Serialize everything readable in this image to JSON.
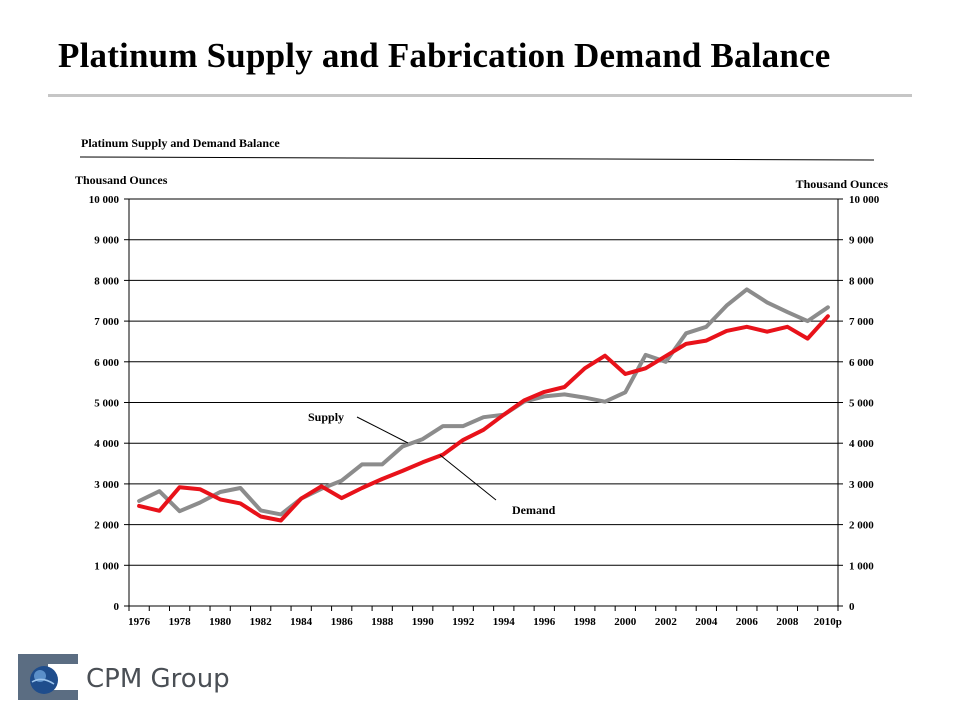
{
  "page": {
    "title": "Platinum Supply and Fabrication Demand Balance",
    "logo_text": "CPM Group"
  },
  "chart_data": {
    "type": "line",
    "title": "Platinum Supply and Demand Balance",
    "ylabel_left": "Thousand Ounces",
    "ylabel_right": "Thousand Ounces",
    "ylim": [
      0,
      10000
    ],
    "yticks": [
      0,
      1000,
      2000,
      3000,
      4000,
      5000,
      6000,
      7000,
      8000,
      9000,
      10000
    ],
    "ytick_labels": [
      "0",
      "1 000",
      "2 000",
      "3 000",
      "4 000",
      "5 000",
      "6 000",
      "7 000",
      "8 000",
      "9 000",
      "10 000"
    ],
    "grid": "horizontal",
    "x": [
      "1976",
      "1977",
      "1978",
      "1979",
      "1980",
      "1981",
      "1982",
      "1983",
      "1984",
      "1985",
      "1986",
      "1987",
      "1988",
      "1989",
      "1990",
      "1991",
      "1992",
      "1993",
      "1994",
      "1995",
      "1996",
      "1997",
      "1998",
      "1999",
      "2000",
      "2001",
      "2002",
      "2003",
      "2004",
      "2005",
      "2006",
      "2007",
      "2008",
      "2009",
      "2010p"
    ],
    "xtick_labels": [
      "1976",
      "1978",
      "1980",
      "1982",
      "1984",
      "1986",
      "1988",
      "1990",
      "1992",
      "1994",
      "1996",
      "1998",
      "2000",
      "2002",
      "2004",
      "2006",
      "2008",
      "2010p"
    ],
    "series": [
      {
        "name": "Supply",
        "color": "#8c8c8c",
        "values": [
          2580,
          2820,
          2330,
          2540,
          2800,
          2900,
          2350,
          2250,
          2640,
          2880,
          3080,
          3480,
          3480,
          3920,
          4100,
          4420,
          4420,
          4640,
          4700,
          5020,
          5150,
          5200,
          5120,
          5020,
          5250,
          6170,
          6000,
          6700,
          6860,
          7380,
          7780,
          7460,
          7220,
          7000,
          7340
        ]
      },
      {
        "name": "Demand",
        "color": "#e8121a",
        "values": [
          2460,
          2340,
          2920,
          2870,
          2620,
          2520,
          2200,
          2100,
          2640,
          2940,
          2650,
          2900,
          3120,
          3320,
          3530,
          3720,
          4080,
          4330,
          4700,
          5050,
          5260,
          5380,
          5840,
          6150,
          5700,
          5840,
          6140,
          6440,
          6520,
          6760,
          6860,
          6740,
          6860,
          6570,
          7120
        ]
      }
    ]
  }
}
